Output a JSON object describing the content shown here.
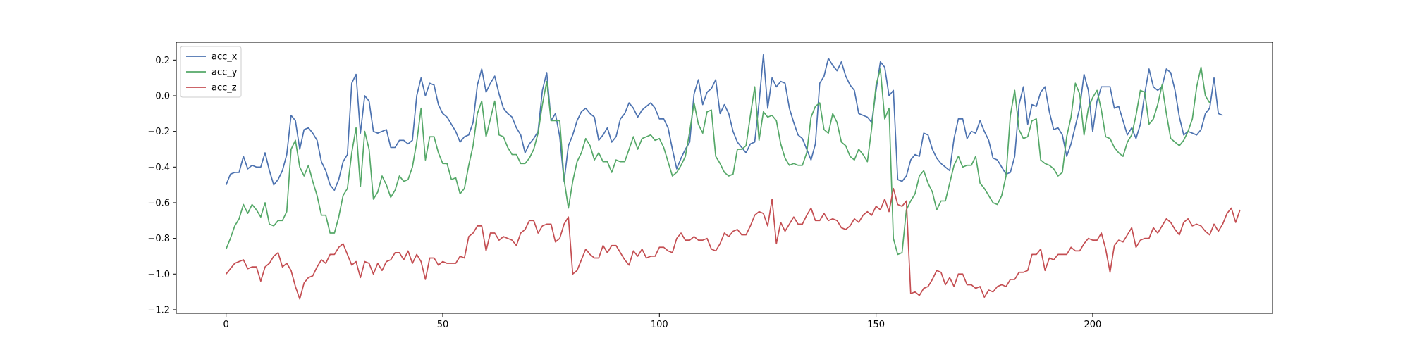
{
  "chart_data": {
    "type": "line",
    "title": "",
    "xlabel": "",
    "ylabel": "",
    "xlim": [
      -11.5,
      241.5
    ],
    "ylim": [
      -1.22,
      0.3
    ],
    "xticks": [
      0,
      50,
      100,
      150,
      200
    ],
    "yticks": [
      -1.2,
      -1.0,
      -0.8,
      -0.6,
      -0.4,
      -0.2,
      0.0,
      0.2
    ],
    "xtick_labels": [
      "0",
      "50",
      "100",
      "150",
      "200"
    ],
    "ytick_labels": [
      "−1.2",
      "−1.0",
      "−0.8",
      "−0.6",
      "−0.4",
      "−0.2",
      "0.0",
      "0.2"
    ],
    "grid": false,
    "legend_position": "top-left",
    "x_start": 0,
    "x_step": 1,
    "series": [
      {
        "name": "acc_x",
        "color": "#4c72b0",
        "values": [
          -0.5,
          -0.44,
          -0.43,
          -0.43,
          -0.34,
          -0.41,
          -0.39,
          -0.4,
          -0.4,
          -0.32,
          -0.42,
          -0.5,
          -0.47,
          -0.42,
          -0.33,
          -0.11,
          -0.14,
          -0.3,
          -0.19,
          -0.18,
          -0.21,
          -0.25,
          -0.37,
          -0.42,
          -0.5,
          -0.53,
          -0.47,
          -0.37,
          -0.33,
          0.07,
          0.12,
          -0.21,
          0.0,
          -0.03,
          -0.2,
          -0.21,
          -0.2,
          -0.19,
          -0.29,
          -0.29,
          -0.25,
          -0.25,
          -0.27,
          -0.25,
          0.0,
          0.1,
          0.0,
          0.07,
          0.06,
          -0.05,
          -0.1,
          -0.12,
          -0.16,
          -0.2,
          -0.26,
          -0.23,
          -0.22,
          -0.15,
          0.06,
          0.15,
          0.02,
          0.07,
          0.11,
          0.01,
          -0.07,
          -0.1,
          -0.12,
          -0.18,
          -0.22,
          -0.32,
          -0.27,
          -0.24,
          -0.2,
          0.03,
          0.13,
          -0.14,
          -0.1,
          -0.23,
          -0.48,
          -0.28,
          -0.22,
          -0.14,
          -0.09,
          -0.07,
          -0.1,
          -0.12,
          -0.25,
          -0.22,
          -0.18,
          -0.26,
          -0.23,
          -0.13,
          -0.1,
          -0.04,
          -0.07,
          -0.12,
          -0.08,
          -0.06,
          -0.04,
          -0.07,
          -0.13,
          -0.13,
          -0.18,
          -0.3,
          -0.41,
          -0.35,
          -0.3,
          -0.26,
          0.01,
          0.09,
          -0.05,
          0.02,
          0.04,
          0.09,
          -0.1,
          -0.05,
          -0.1,
          -0.2,
          -0.26,
          -0.29,
          -0.32,
          -0.27,
          -0.26,
          -0.04,
          0.23,
          -0.07,
          0.1,
          0.05,
          0.08,
          0.07,
          -0.07,
          -0.15,
          -0.22,
          -0.24,
          -0.3,
          -0.36,
          -0.27,
          0.07,
          0.11,
          0.21,
          0.17,
          0.14,
          0.19,
          0.11,
          0.06,
          0.03,
          -0.1,
          -0.11,
          -0.12,
          -0.15,
          0.03,
          0.19,
          0.16,
          0.0,
          0.03,
          -0.47,
          -0.48,
          -0.45,
          -0.36,
          -0.33,
          -0.34,
          -0.21,
          -0.22,
          -0.3,
          -0.35,
          -0.38,
          -0.4,
          -0.42,
          -0.24,
          -0.13,
          -0.13,
          -0.24,
          -0.2,
          -0.21,
          -0.14,
          -0.2,
          -0.25,
          -0.35,
          -0.36,
          -0.4,
          -0.44,
          -0.43,
          -0.34,
          -0.05,
          0.05,
          -0.16,
          -0.05,
          -0.06,
          0.02,
          0.05,
          -0.09,
          -0.19,
          -0.18,
          -0.22,
          -0.34,
          -0.27,
          -0.17,
          -0.07,
          0.12,
          0.03,
          -0.2,
          -0.03,
          0.05,
          0.05,
          0.05,
          -0.07,
          -0.06,
          -0.14,
          -0.22,
          -0.18,
          -0.24,
          -0.16,
          0.01,
          0.15,
          0.05,
          0.03,
          0.05,
          0.15,
          0.13,
          0.03,
          -0.12,
          -0.22,
          -0.2,
          -0.21,
          -0.22,
          -0.19,
          -0.1,
          -0.07,
          0.1,
          -0.1,
          -0.11
        ]
      },
      {
        "name": "acc_y",
        "color": "#55a868",
        "values": [
          -0.86,
          -0.8,
          -0.73,
          -0.69,
          -0.61,
          -0.66,
          -0.61,
          -0.64,
          -0.68,
          -0.6,
          -0.72,
          -0.73,
          -0.7,
          -0.7,
          -0.65,
          -0.3,
          -0.25,
          -0.4,
          -0.45,
          -0.39,
          -0.48,
          -0.56,
          -0.67,
          -0.67,
          -0.77,
          -0.77,
          -0.68,
          -0.56,
          -0.52,
          -0.32,
          -0.18,
          -0.51,
          -0.2,
          -0.3,
          -0.58,
          -0.54,
          -0.45,
          -0.5,
          -0.57,
          -0.53,
          -0.45,
          -0.48,
          -0.47,
          -0.4,
          -0.26,
          -0.07,
          -0.36,
          -0.23,
          -0.23,
          -0.32,
          -0.38,
          -0.38,
          -0.47,
          -0.46,
          -0.55,
          -0.52,
          -0.39,
          -0.28,
          -0.1,
          -0.03,
          -0.23,
          -0.13,
          -0.03,
          -0.22,
          -0.23,
          -0.29,
          -0.33,
          -0.33,
          -0.38,
          -0.38,
          -0.35,
          -0.3,
          -0.21,
          -0.05,
          0.08,
          -0.14,
          -0.14,
          -0.14,
          -0.47,
          -0.63,
          -0.48,
          -0.37,
          -0.32,
          -0.24,
          -0.28,
          -0.36,
          -0.32,
          -0.37,
          -0.37,
          -0.43,
          -0.36,
          -0.37,
          -0.37,
          -0.3,
          -0.23,
          -0.3,
          -0.24,
          -0.23,
          -0.22,
          -0.25,
          -0.24,
          -0.29,
          -0.37,
          -0.45,
          -0.43,
          -0.39,
          -0.34,
          -0.2,
          -0.04,
          -0.16,
          -0.21,
          -0.09,
          -0.08,
          -0.34,
          -0.38,
          -0.43,
          -0.45,
          -0.44,
          -0.3,
          -0.3,
          -0.28,
          -0.11,
          0.05,
          -0.25,
          -0.09,
          -0.12,
          -0.11,
          -0.14,
          -0.27,
          -0.35,
          -0.39,
          -0.38,
          -0.39,
          -0.39,
          -0.32,
          -0.12,
          -0.06,
          -0.04,
          -0.19,
          -0.21,
          -0.1,
          -0.15,
          -0.26,
          -0.28,
          -0.34,
          -0.36,
          -0.3,
          -0.33,
          -0.37,
          -0.18,
          0.06,
          0.15,
          -0.13,
          -0.07,
          -0.8,
          -0.89,
          -0.88,
          -0.64,
          -0.59,
          -0.55,
          -0.45,
          -0.42,
          -0.49,
          -0.54,
          -0.64,
          -0.59,
          -0.59,
          -0.49,
          -0.39,
          -0.34,
          -0.4,
          -0.39,
          -0.39,
          -0.34,
          -0.49,
          -0.52,
          -0.56,
          -0.6,
          -0.61,
          -0.56,
          -0.45,
          -0.11,
          0.03,
          -0.19,
          -0.24,
          -0.23,
          -0.14,
          -0.13,
          -0.36,
          -0.38,
          -0.39,
          -0.41,
          -0.45,
          -0.43,
          -0.23,
          -0.12,
          0.07,
          0.01,
          -0.22,
          -0.07,
          -0.01,
          0.03,
          -0.08,
          -0.23,
          -0.24,
          -0.29,
          -0.32,
          -0.34,
          -0.26,
          -0.22,
          -0.11,
          0.03,
          0.02,
          -0.16,
          -0.13,
          -0.05,
          0.06,
          -0.1,
          -0.24,
          -0.26,
          -0.28,
          -0.25,
          -0.2,
          -0.13,
          0.05,
          0.16,
          0.0,
          -0.04
        ]
      },
      {
        "name": "acc_z",
        "color": "#c44e52",
        "values": [
          -1.0,
          -0.97,
          -0.94,
          -0.93,
          -0.92,
          -0.97,
          -0.96,
          -0.96,
          -1.04,
          -0.96,
          -0.94,
          -0.9,
          -0.88,
          -0.96,
          -0.94,
          -0.98,
          -1.07,
          -1.14,
          -1.05,
          -1.02,
          -1.01,
          -0.96,
          -0.92,
          -0.94,
          -0.89,
          -0.89,
          -0.85,
          -0.83,
          -0.89,
          -0.95,
          -0.93,
          -1.02,
          -0.93,
          -0.94,
          -1.0,
          -0.94,
          -0.98,
          -0.93,
          -0.92,
          -0.88,
          -0.88,
          -0.92,
          -0.87,
          -0.94,
          -0.89,
          -0.93,
          -1.03,
          -0.91,
          -0.91,
          -0.95,
          -0.93,
          -0.94,
          -0.94,
          -0.94,
          -0.9,
          -0.91,
          -0.79,
          -0.77,
          -0.73,
          -0.73,
          -0.87,
          -0.77,
          -0.77,
          -0.81,
          -0.79,
          -0.8,
          -0.81,
          -0.84,
          -0.77,
          -0.75,
          -0.7,
          -0.7,
          -0.77,
          -0.73,
          -0.72,
          -0.72,
          -0.82,
          -0.8,
          -0.72,
          -0.68,
          -1.0,
          -0.98,
          -0.92,
          -0.86,
          -0.89,
          -0.91,
          -0.91,
          -0.84,
          -0.88,
          -0.84,
          -0.84,
          -0.88,
          -0.92,
          -0.95,
          -0.87,
          -0.9,
          -0.86,
          -0.91,
          -0.9,
          -0.9,
          -0.85,
          -0.85,
          -0.87,
          -0.88,
          -0.8,
          -0.77,
          -0.81,
          -0.81,
          -0.79,
          -0.81,
          -0.81,
          -0.8,
          -0.86,
          -0.87,
          -0.83,
          -0.77,
          -0.79,
          -0.76,
          -0.75,
          -0.78,
          -0.78,
          -0.73,
          -0.67,
          -0.65,
          -0.66,
          -0.73,
          -0.58,
          -0.83,
          -0.71,
          -0.76,
          -0.72,
          -0.68,
          -0.72,
          -0.72,
          -0.67,
          -0.63,
          -0.7,
          -0.7,
          -0.66,
          -0.7,
          -0.69,
          -0.7,
          -0.74,
          -0.75,
          -0.73,
          -0.69,
          -0.71,
          -0.67,
          -0.65,
          -0.67,
          -0.62,
          -0.64,
          -0.58,
          -0.65,
          -0.52,
          -0.61,
          -0.62,
          -0.59,
          -1.11,
          -1.1,
          -1.12,
          -1.08,
          -1.07,
          -1.03,
          -0.98,
          -0.99,
          -1.06,
          -1.02,
          -1.07,
          -1.0,
          -1.0,
          -1.06,
          -1.06,
          -1.08,
          -1.07,
          -1.13,
          -1.09,
          -1.1,
          -1.07,
          -1.06,
          -1.07,
          -1.03,
          -1.03,
          -0.99,
          -0.99,
          -0.98,
          -0.89,
          -0.89,
          -0.86,
          -0.98,
          -0.91,
          -0.92,
          -0.89,
          -0.89,
          -0.89,
          -0.85,
          -0.87,
          -0.87,
          -0.83,
          -0.8,
          -0.81,
          -0.81,
          -0.77,
          -0.86,
          -0.99,
          -0.84,
          -0.81,
          -0.82,
          -0.78,
          -0.74,
          -0.85,
          -0.81,
          -0.8,
          -0.8,
          -0.74,
          -0.77,
          -0.73,
          -0.69,
          -0.71,
          -0.75,
          -0.78,
          -0.71,
          -0.69,
          -0.73,
          -0.72,
          -0.73,
          -0.76,
          -0.78,
          -0.72,
          -0.76,
          -0.72,
          -0.66,
          -0.63,
          -0.71,
          -0.64
        ]
      }
    ]
  }
}
